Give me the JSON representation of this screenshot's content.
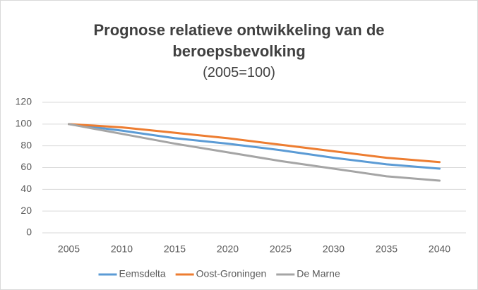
{
  "chart_data": {
    "type": "line",
    "title": "Prognose relatieve ontwikkeling van de beroepsbevolking",
    "subtitle": "(2005=100)",
    "categories": [
      "2005",
      "2010",
      "2015",
      "2020",
      "2025",
      "2030",
      "2035",
      "2040"
    ],
    "series": [
      {
        "name": "Eemsdelta",
        "color": "#5b9bd5",
        "values": [
          100,
          94,
          87,
          82,
          76,
          69,
          63,
          59
        ]
      },
      {
        "name": "Oost-Groningen",
        "color": "#ed7d31",
        "values": [
          100,
          97,
          92,
          87,
          81,
          75,
          69,
          65
        ]
      },
      {
        "name": "De Marne",
        "color": "#a5a5a5",
        "values": [
          100,
          91,
          82,
          74,
          66,
          59,
          52,
          48
        ]
      }
    ],
    "ylim": [
      0,
      120
    ],
    "yticks": [
      0,
      20,
      40,
      60,
      80,
      100,
      120
    ],
    "grid": true,
    "legend": "bottom"
  }
}
